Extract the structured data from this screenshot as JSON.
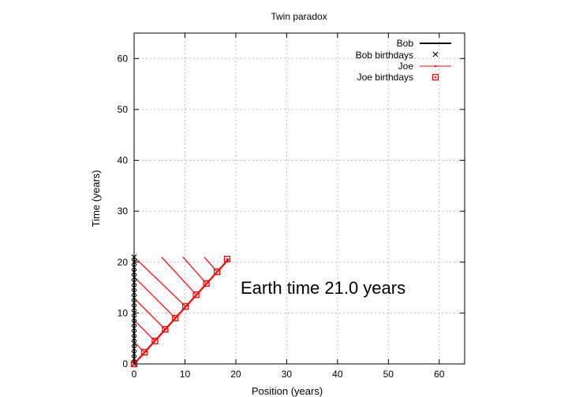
{
  "chart_data": {
    "type": "line",
    "title": "Twin paradox",
    "xlabel": "Position (years)",
    "ylabel": "Time (years)",
    "xlim": [
      0,
      65
    ],
    "ylim": [
      0,
      65
    ],
    "xticks": [
      "0",
      "10",
      "20",
      "30",
      "40",
      "50",
      "60"
    ],
    "yticks": [
      "0",
      "10",
      "20",
      "30",
      "40",
      "50",
      "60"
    ],
    "grid": true,
    "legend_position": "top-right",
    "annotation": "Earth time 21.0 years",
    "colors": {
      "bob": "#000000",
      "joe": "#ff0000",
      "grid": "#bbbbbb"
    },
    "series": [
      {
        "name": "Bob",
        "style": "line",
        "x": [
          0,
          0
        ],
        "y": [
          0,
          21
        ]
      },
      {
        "name": "Bob birthdays",
        "style": "x-markers",
        "x": [
          0,
          0,
          0,
          0,
          0,
          0,
          0,
          0,
          0,
          0,
          0,
          0,
          0,
          0,
          0,
          0,
          0,
          0,
          0,
          0,
          0,
          0
        ],
        "y": [
          0,
          1,
          2,
          3,
          4,
          5,
          6,
          7,
          8,
          9,
          10,
          11,
          12,
          13,
          14,
          15,
          16,
          17,
          18,
          19,
          20,
          21
        ]
      },
      {
        "name": "Joe",
        "style": "line",
        "x": [
          0,
          18.6
        ],
        "y": [
          0,
          20.6
        ]
      },
      {
        "name": "Joe birthdays",
        "style": "square-markers",
        "x": [
          0,
          2.0,
          4.1,
          6.1,
          8.1,
          10.1,
          12.2,
          14.2,
          16.3,
          18.3
        ],
        "y": [
          0,
          2.3,
          4.5,
          6.8,
          9.0,
          11.3,
          13.6,
          15.8,
          18.1,
          20.6
        ]
      }
    ],
    "light_signals": [
      {
        "from": [
          0,
          4.3
        ],
        "to": [
          2.0,
          2.3
        ]
      },
      {
        "from": [
          0,
          8.6
        ],
        "to": [
          4.1,
          4.5
        ]
      },
      {
        "from": [
          0,
          12.9
        ],
        "to": [
          6.1,
          6.8
        ]
      },
      {
        "from": [
          0,
          17.1
        ],
        "to": [
          8.1,
          9.0
        ]
      },
      {
        "from": [
          0,
          21.0
        ],
        "to": [
          10.1,
          11.3
        ]
      },
      {
        "from": [
          5.4,
          21.0
        ],
        "to": [
          12.2,
          13.6
        ]
      },
      {
        "from": [
          9.6,
          21.0
        ],
        "to": [
          14.2,
          15.8
        ]
      },
      {
        "from": [
          13.8,
          21.0
        ],
        "to": [
          16.3,
          18.1
        ]
      }
    ]
  }
}
